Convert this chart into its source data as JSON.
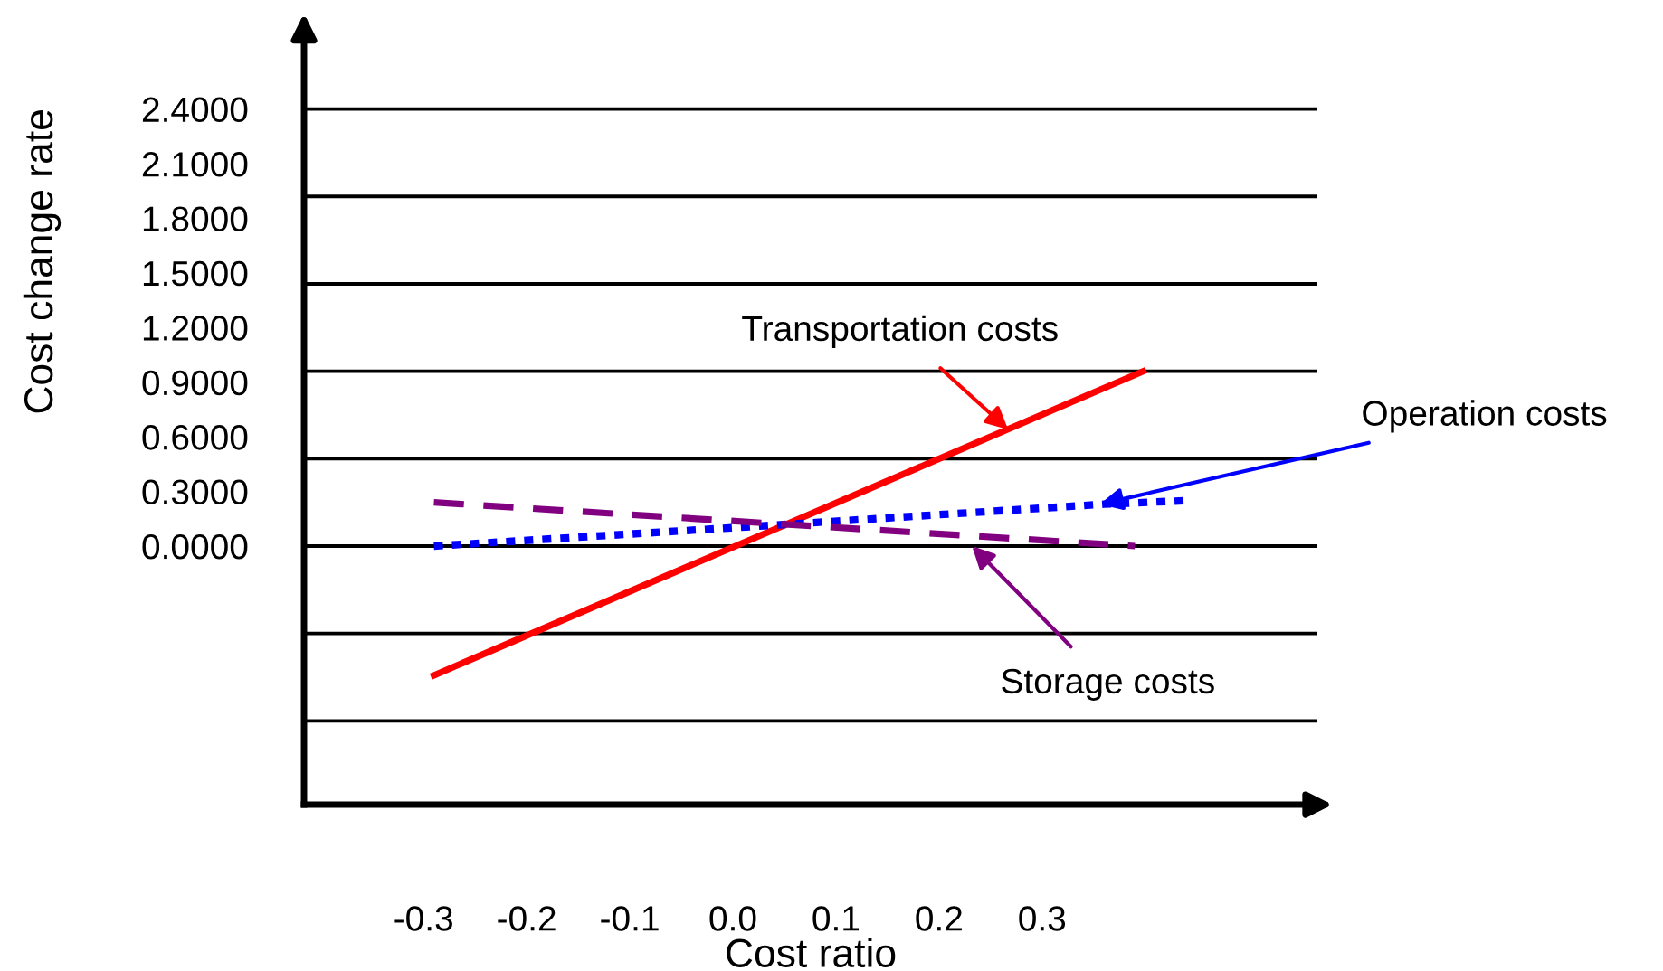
{
  "chart_data": {
    "type": "line",
    "xlabel": "Cost ratio",
    "ylabel": "Cost change rate",
    "xlim": [
      -0.416,
      0.567
    ],
    "ylim": [
      -1.42,
      2.84
    ],
    "xticks": [
      {
        "value": -0.3,
        "label": "-0.3"
      },
      {
        "value": -0.2,
        "label": "-0.2"
      },
      {
        "value": -0.1,
        "label": "-0.1"
      },
      {
        "value": 0,
        "label": "0.0"
      },
      {
        "value": 0.1,
        "label": "0.1"
      },
      {
        "value": 0.2,
        "label": "0.2"
      },
      {
        "value": 0.3,
        "label": "0.3"
      }
    ],
    "yticks": [
      {
        "value": 0,
        "label": "0.0000"
      },
      {
        "value": 0.3,
        "label": "0.3000"
      },
      {
        "value": 0.6,
        "label": "0.6000"
      },
      {
        "value": 0.9,
        "label": "0.9000"
      },
      {
        "value": 1.2,
        "label": "1.2000"
      },
      {
        "value": 1.5,
        "label": "1.5000"
      },
      {
        "value": 1.8,
        "label": "1.8000"
      },
      {
        "value": 2.1,
        "label": "2.1000"
      },
      {
        "value": 2.4,
        "label": "2.4000"
      }
    ],
    "grid": false,
    "legend": false,
    "marker": "none",
    "series": [
      {
        "color": "#ff0000",
        "line_style": "solid",
        "x": [
          -0.29,
          0.398
        ],
        "values": [
          -0.71,
          0.96
        ]
      },
      {
        "color": "#0000ff",
        "line_style": "dotted",
        "x": [
          -0.29,
          0.026,
          0.36,
          0.442
        ],
        "values": [
          0.0,
          0.11,
          0.23,
          0.25
        ]
      },
      {
        "color": "#800080",
        "line_style": "dashed",
        "x": [
          -0.29,
          0.39
        ],
        "values": [
          0.24,
          0.0
        ]
      }
    ],
    "annotations": [
      {
        "text": "Transportation costs",
        "x": 0.267,
        "y": 0.64
      },
      {
        "text": "Operation costs",
        "x": 0.356,
        "y": 0.23
      },
      {
        "text": "Storage costs",
        "x": 0.232,
        "y": 0.0
      }
    ],
    "ref_lines": [
      {
        "axis": "y",
        "value": 2.4,
        "color": "#000000"
      },
      {
        "axis": "y",
        "value": 1.92,
        "color": "#000000"
      },
      {
        "axis": "y",
        "value": 1.44,
        "color": "#000000"
      },
      {
        "axis": "y",
        "value": 0.96,
        "color": "#000000"
      },
      {
        "axis": "y",
        "value": 0.48,
        "color": "#000000"
      },
      {
        "axis": "y",
        "value": 0.0,
        "color": "#000000"
      },
      {
        "axis": "y",
        "value": -0.48,
        "color": "#000000"
      },
      {
        "axis": "y",
        "value": -0.96,
        "color": "#000000"
      }
    ]
  }
}
